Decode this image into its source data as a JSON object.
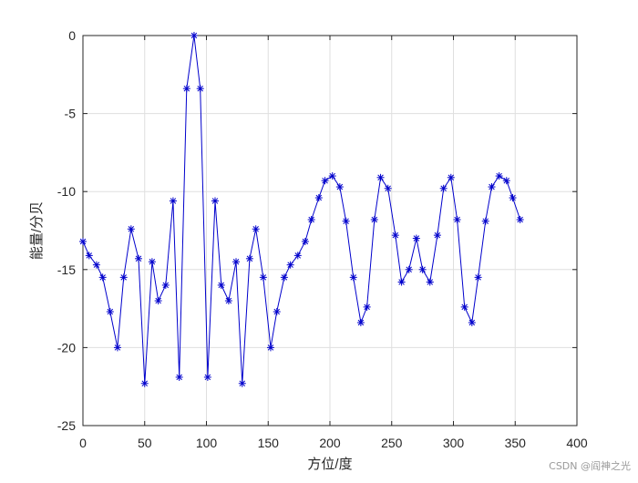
{
  "chart_data": {
    "type": "line",
    "title": "",
    "xlabel": "方位/度",
    "ylabel": "能量/分贝",
    "xlim": [
      0,
      400
    ],
    "ylim": [
      -25,
      0
    ],
    "xticks": [
      0,
      50,
      100,
      150,
      200,
      250,
      300,
      350,
      400
    ],
    "yticks": [
      0,
      -5,
      -10,
      -15,
      -20,
      -25
    ],
    "grid": true,
    "marker": "asterisk",
    "series": [
      {
        "color": "#0000cc",
        "x": [
          0,
          5,
          11,
          16,
          22,
          28,
          33,
          39,
          45,
          50,
          56,
          61,
          67,
          73,
          78,
          84,
          90,
          95,
          101,
          107,
          112,
          118,
          124,
          129,
          135,
          140,
          146,
          152,
          157,
          163,
          168,
          174,
          180,
          185,
          191,
          196,
          202,
          208,
          213,
          219,
          225,
          230,
          236,
          241,
          247,
          253,
          258,
          264,
          270,
          275,
          281,
          287,
          292,
          298,
          303,
          309,
          315,
          320,
          326,
          331,
          337,
          343,
          348,
          354
        ],
        "y": [
          -13.2,
          -14.1,
          -14.7,
          -15.5,
          -17.7,
          -20.0,
          -15.5,
          -12.4,
          -14.3,
          -22.3,
          -14.5,
          -17.0,
          -16.0,
          -10.6,
          -21.9,
          -3.4,
          0.0,
          -3.4,
          -21.9,
          -10.6,
          -16.0,
          -17.0,
          -14.5,
          -22.3,
          -14.3,
          -12.4,
          -15.5,
          -20.0,
          -17.7,
          -15.5,
          -14.7,
          -14.1,
          -13.2,
          -11.8,
          -10.4,
          -9.3,
          -9.0,
          -9.7,
          -11.9,
          -15.5,
          -18.4,
          -17.4,
          -11.8,
          -9.1,
          -9.8,
          -12.8,
          -15.8,
          -15.0,
          -13.0,
          -15.0,
          -15.8,
          -12.8,
          -9.8,
          -9.1,
          -11.8,
          -17.4,
          -18.4,
          -15.5,
          -11.9,
          -9.7,
          -9.0,
          -9.3,
          -10.4,
          -11.8
        ]
      }
    ]
  },
  "watermark": "CSDN @阎神之光"
}
